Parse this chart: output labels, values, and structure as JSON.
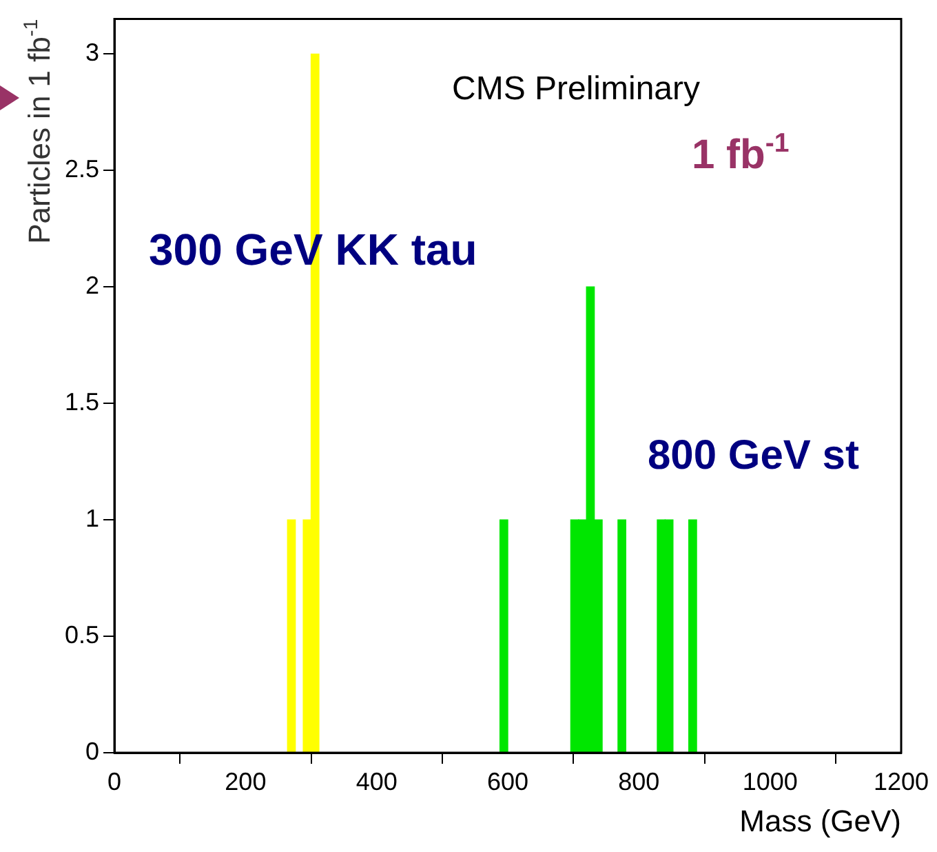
{
  "chart_data": {
    "type": "histogram",
    "xlabel": "Mass (GeV)",
    "ylabel": "Particles in 1 fb$^{-1}$",
    "annotations": [
      "CMS Preliminary",
      "1 fb$^{-1}$",
      "300 GeV KK tau",
      "800 GeV st"
    ],
    "bins": [
      264,
      276,
      288,
      300,
      312,
      324,
      336,
      348,
      360,
      372,
      384,
      396,
      408,
      420,
      432,
      444,
      456,
      468,
      480,
      492,
      504,
      516,
      528,
      540,
      552,
      564,
      576,
      588,
      600,
      612,
      624,
      636,
      648,
      660,
      672,
      684,
      696,
      708,
      720,
      732,
      744,
      756,
      768,
      780,
      792,
      804,
      816,
      828,
      840,
      852,
      864,
      876,
      888
    ],
    "series": [
      {
        "color": "#ffff00",
        "values": [
          1,
          0,
          1,
          3,
          null,
          null,
          null,
          null,
          null,
          null,
          null,
          null,
          null,
          null,
          null,
          null,
          null,
          null,
          null,
          null,
          null,
          null,
          null,
          null,
          null,
          null,
          null,
          null,
          null,
          null,
          null,
          null,
          null,
          null,
          null,
          null,
          null,
          null,
          null,
          null,
          null,
          null,
          null,
          null,
          null,
          null,
          null,
          null,
          null,
          null,
          null,
          null
        ]
      },
      {
        "color": "#00e600",
        "values": [
          null,
          null,
          null,
          null,
          null,
          null,
          null,
          null,
          null,
          null,
          null,
          null,
          null,
          null,
          null,
          null,
          null,
          null,
          null,
          null,
          null,
          null,
          null,
          null,
          null,
          null,
          null,
          1,
          0,
          0,
          0,
          0,
          0,
          0,
          0,
          0,
          1,
          1,
          2,
          1,
          0,
          0,
          1,
          0,
          0,
          0,
          0,
          1,
          1,
          0,
          0,
          1
        ]
      }
    ],
    "xlim": [
      0,
      1200
    ],
    "xticks": [
      0,
      200,
      400,
      600,
      800,
      1000,
      1200
    ],
    "ylim": [
      0,
      3.15
    ],
    "yticks": [
      0,
      0.5,
      1,
      1.5,
      2,
      2.5,
      3
    ],
    "grid": false,
    "legend": false
  }
}
